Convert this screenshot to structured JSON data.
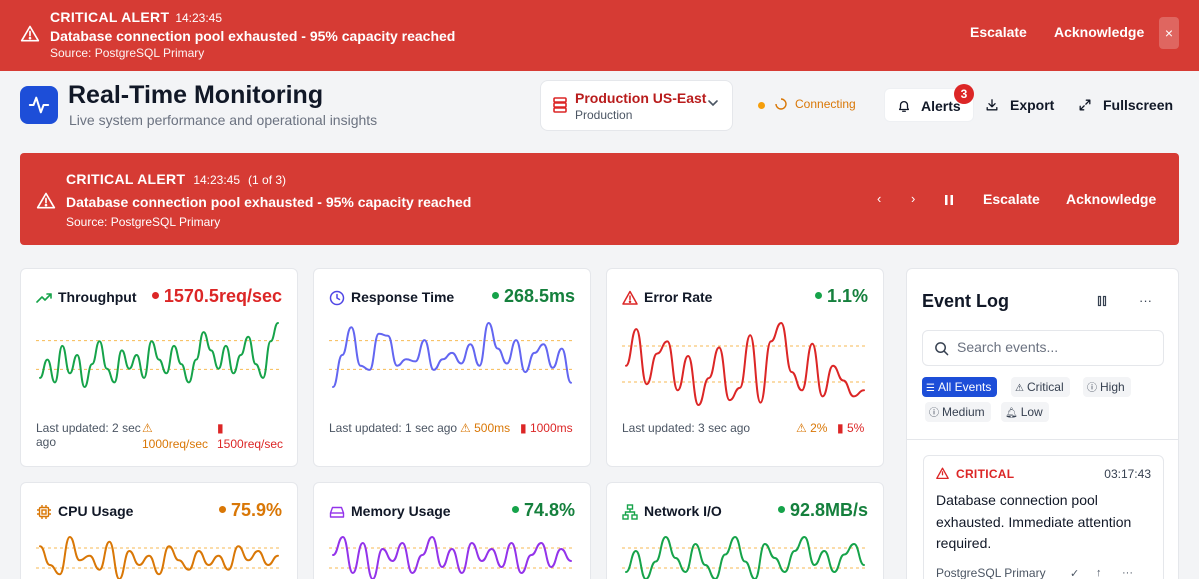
{
  "colors": {
    "critical": "#d63b34",
    "accent": "#1d4ed8",
    "ok": "#16a34a",
    "warn": "#d97706",
    "red": "#dc2626"
  },
  "top_banner": {
    "label": "CRITICAL ALERT",
    "time": "14:23:45",
    "message": "Database connection pool exhausted - 95% capacity reached",
    "source": "Source: PostgreSQL Primary",
    "escalate": "Escalate",
    "acknowledge": "Acknowledge",
    "close_icon": "×"
  },
  "header": {
    "title": "Real-Time Monitoring",
    "subtitle": "Live system performance and operational insights",
    "environment": {
      "name": "Production US-East",
      "sub": "Production"
    },
    "connection_status": "Connecting",
    "alerts_label": "Alerts",
    "alerts_count": "3",
    "export_label": "Export",
    "fullscreen_label": "Fullscreen"
  },
  "alert_panel": {
    "label": "CRITICAL ALERT",
    "time": "14:23:45",
    "count": "(1 of 3)",
    "message": "Database connection pool exhausted - 95% capacity reached",
    "source": "Source: PostgreSQL Primary",
    "prev_icon": "‹",
    "next_icon": "›",
    "escalate": "Escalate",
    "acknowledge": "Acknowledge"
  },
  "metrics": [
    {
      "title": "Throughput",
      "value": "1570.5req/sec",
      "status_color": "#dc2626",
      "line_color": "#16a34a",
      "threshold_color": "#f59e0b",
      "footer": "Last updated: 2 sec ago",
      "warn_threshold": "1000req/sec",
      "crit_threshold": "1500req/sec",
      "series": [
        48,
        52,
        47,
        55,
        49,
        53,
        46,
        51,
        56,
        50,
        47,
        54,
        50,
        53,
        48,
        56,
        52,
        49,
        55,
        51,
        47,
        52,
        58,
        54,
        50,
        55,
        49,
        53,
        57,
        51,
        48,
        56,
        60
      ]
    },
    {
      "title": "Response Time",
      "value": "268.5ms",
      "status_color": "#16a34a",
      "line_color": "#6366f1",
      "threshold_color": "#f59e0b",
      "footer": "Last updated: 1 sec ago",
      "warn_threshold": "500ms",
      "crit_threshold": "1000ms",
      "series": [
        20,
        35,
        48,
        30,
        28,
        45,
        44,
        30,
        33,
        32,
        42,
        28,
        33,
        36,
        31,
        40,
        30,
        50,
        38,
        31,
        42,
        27,
        36,
        40,
        29,
        38,
        22
      ]
    },
    {
      "title": "Error Rate",
      "value": "1.1%",
      "status_color": "#16a34a",
      "line_color": "#dc2626",
      "threshold_color": "#f59e0b",
      "footer": "Last updated: 3 sec ago",
      "warn_threshold": "2%",
      "crit_threshold": "5%",
      "series": [
        40,
        70,
        25,
        50,
        60,
        20,
        48,
        8,
        30,
        55,
        12,
        22,
        65,
        10,
        60,
        75,
        35,
        20,
        58,
        15,
        40,
        28,
        15,
        20
      ]
    },
    {
      "title": "CPU Usage",
      "value": "75.9%",
      "status_color": "#d97706",
      "line_color": "#d97706",
      "threshold_color": "#f59e0b",
      "series": [
        52,
        48,
        46,
        54,
        49,
        50,
        47,
        53,
        45,
        51,
        48,
        50,
        46,
        52,
        49,
        47,
        51,
        48,
        50,
        47,
        52,
        49,
        51,
        48,
        50
      ]
    },
    {
      "title": "Memory Usage",
      "value": "74.8%",
      "status_color": "#16a34a",
      "line_color": "#9333ea",
      "threshold_color": "#f59e0b",
      "series": [
        50,
        53,
        47,
        52,
        46,
        51,
        49,
        52,
        47,
        50,
        53,
        48,
        51,
        47,
        52,
        49,
        51,
        48,
        52,
        47,
        50,
        52,
        48,
        51,
        49
      ]
    },
    {
      "title": "Network I/O",
      "value": "92.8MB/s",
      "status_color": "#16a34a",
      "line_color": "#16a34a",
      "threshold_color": "#f59e0b",
      "series": [
        42,
        48,
        40,
        45,
        52,
        46,
        42,
        50,
        44,
        40,
        47,
        52,
        45,
        40,
        50,
        46,
        42,
        48,
        52,
        44,
        48,
        42,
        47,
        50,
        44
      ]
    }
  ],
  "event_log": {
    "title": "Event Log",
    "search_placeholder": "Search events...",
    "filters": [
      "All Events",
      "Critical",
      "High",
      "Medium",
      "Low"
    ],
    "event": {
      "severity": "CRITICAL",
      "time": "03:17:43",
      "message": "Database connection pool exhausted. Immediate attention required.",
      "source": "PostgreSQL Primary"
    }
  }
}
